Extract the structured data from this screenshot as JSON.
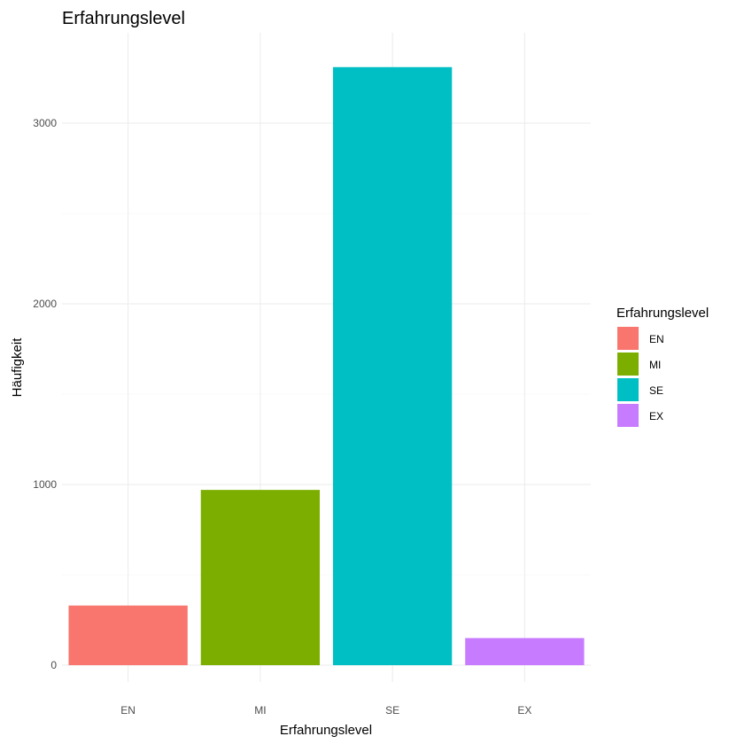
{
  "chart_data": {
    "type": "bar",
    "title": "Erfahrungslevel",
    "xlabel": "Erfahrungslevel",
    "ylabel": "Häufigkeit",
    "categories": [
      "EN",
      "MI",
      "SE",
      "EX"
    ],
    "values": [
      330,
      970,
      3310,
      150
    ],
    "colors": [
      "#F8766D",
      "#7CAE00",
      "#00BFC4",
      "#C77CFF"
    ],
    "ylim": [
      0,
      3475
    ],
    "yticks": [
      0,
      1000,
      2000,
      3000
    ],
    "grid": true,
    "legend": {
      "title": "Erfahrungslevel",
      "placement": "right",
      "items": [
        "EN",
        "MI",
        "SE",
        "EX"
      ]
    }
  }
}
